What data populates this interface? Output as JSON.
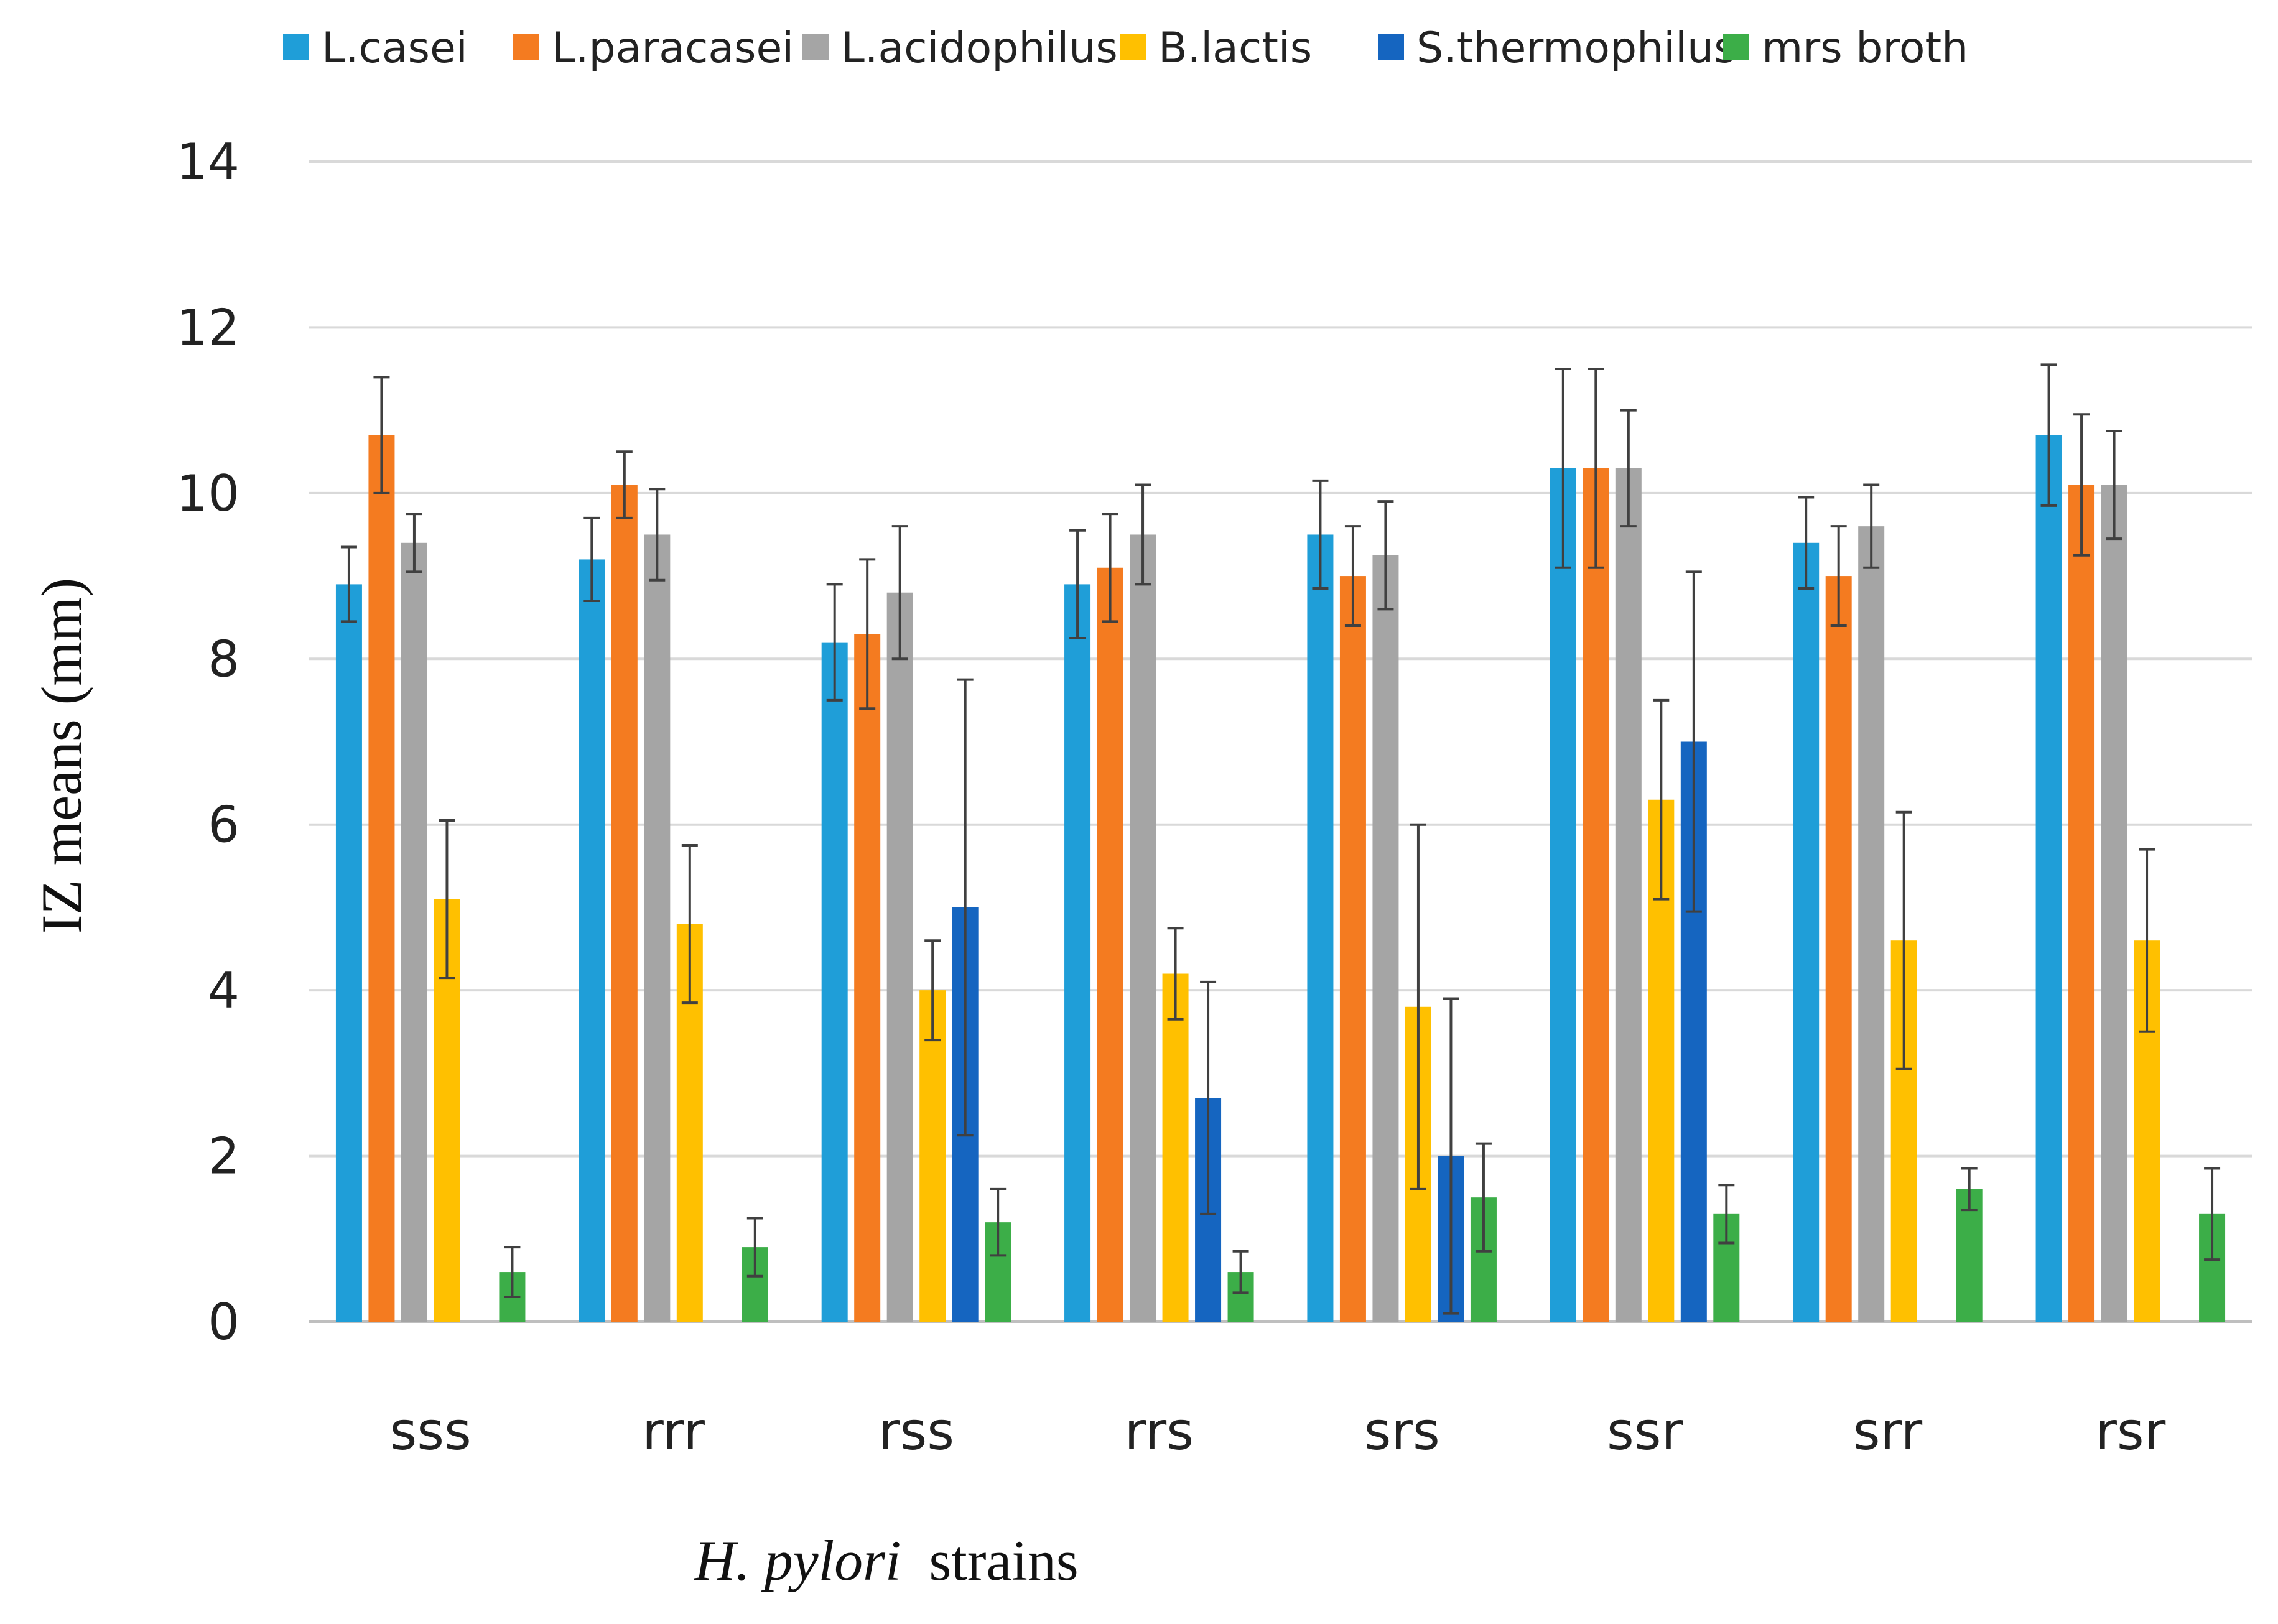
{
  "chart_data": {
    "type": "bar",
    "title": "",
    "xlabel_italic": "H. pylori",
    "xlabel_rest": "strains",
    "ylabel": "IZ means (mm)",
    "ylim": [
      0,
      14
    ],
    "yticks": [
      "0",
      "2",
      "4",
      "6",
      "8",
      "10",
      "12",
      "14"
    ],
    "grid": true,
    "legend_position": "top",
    "categories": [
      "sss",
      "rrr",
      "rss",
      "rrs",
      "srs",
      "ssr",
      "srr",
      "rsr"
    ],
    "series": [
      {
        "name": "L.casei",
        "color": "#1f9ed8",
        "values": [
          8.9,
          9.2,
          8.2,
          8.9,
          9.5,
          10.3,
          9.4,
          10.7
        ],
        "errors": [
          0.45,
          0.5,
          0.7,
          0.65,
          0.65,
          1.2,
          0.55,
          0.85
        ]
      },
      {
        "name": "L.paracasei",
        "color": "#f47b20",
        "values": [
          10.7,
          10.1,
          8.3,
          9.1,
          9.0,
          10.3,
          9.0,
          10.1
        ],
        "errors": [
          0.7,
          0.4,
          0.9,
          0.65,
          0.6,
          1.2,
          0.6,
          0.85
        ]
      },
      {
        "name": "L.acidophilus",
        "color": "#a5a5a5",
        "values": [
          9.4,
          9.5,
          8.8,
          9.5,
          9.25,
          10.3,
          9.6,
          10.1
        ],
        "errors": [
          0.35,
          0.55,
          0.8,
          0.6,
          0.65,
          0.7,
          0.5,
          0.65
        ]
      },
      {
        "name": "B.lactis",
        "color": "#ffc000",
        "values": [
          5.1,
          4.8,
          4.0,
          4.2,
          3.8,
          6.3,
          4.6,
          4.6
        ],
        "errors": [
          0.95,
          0.95,
          0.6,
          0.55,
          2.2,
          1.2,
          1.55,
          1.1
        ]
      },
      {
        "name": "S.thermophilus",
        "color": "#1565c0",
        "values": [
          null,
          null,
          5.0,
          2.7,
          2.0,
          7.0,
          null,
          null
        ],
        "errors": [
          null,
          null,
          2.75,
          1.4,
          1.9,
          2.05,
          null,
          null
        ]
      },
      {
        "name": "mrs broth",
        "color": "#3cae48",
        "values": [
          0.6,
          0.9,
          1.2,
          0.6,
          1.5,
          1.3,
          1.6,
          1.3
        ],
        "errors": [
          0.3,
          0.35,
          0.4,
          0.25,
          0.65,
          0.35,
          0.25,
          0.55
        ]
      }
    ]
  }
}
